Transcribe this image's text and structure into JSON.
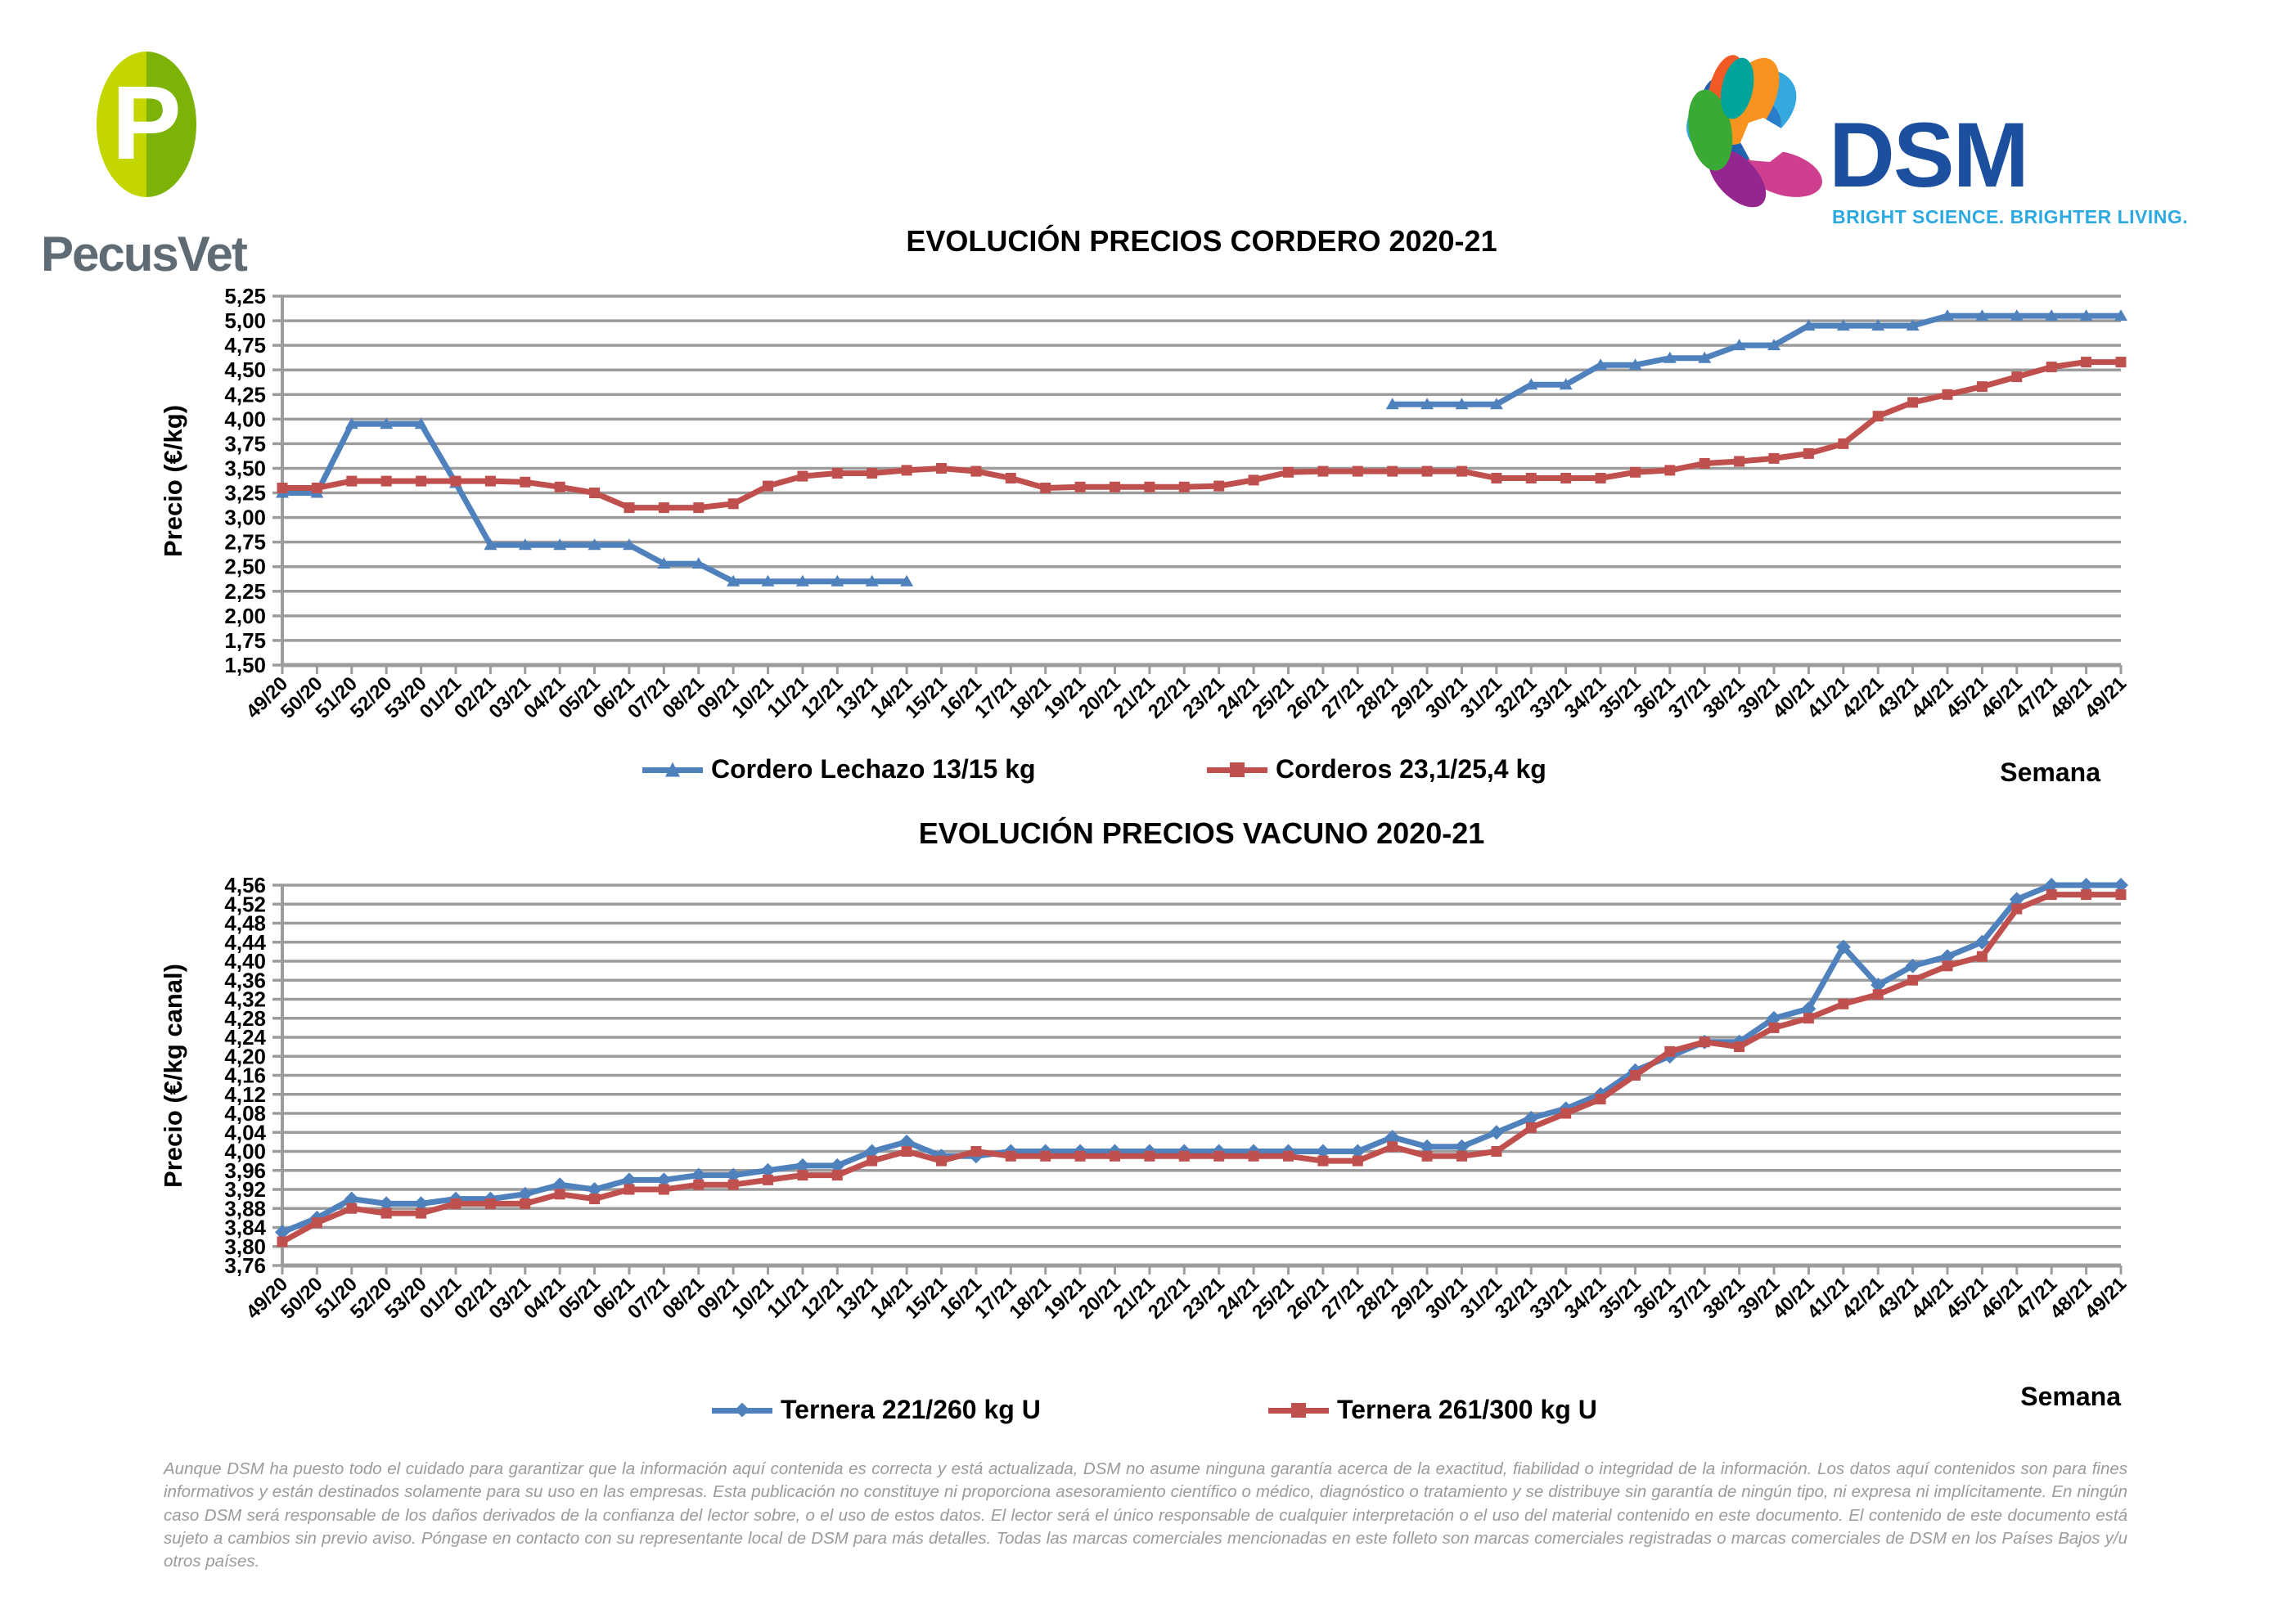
{
  "header": {
    "pecusvet_logo": {
      "monogram": "P",
      "wordmark": "PecusVet",
      "oval_left_color": "#c3d600",
      "oval_right_color": "#7db306",
      "wordmark_color": "#5f6b74"
    },
    "dsm_logo": {
      "wordmark": "DSM",
      "tagline": "BRIGHT SCIENCE. BRIGHTER LIVING.",
      "wordmark_color": "#1c4f9e",
      "tagline_color": "#2da9e1"
    }
  },
  "chart_data": [
    {
      "type": "line",
      "title": "EVOLUCIÓN PRECIOS CORDERO 2020-21",
      "ylabel": "Precio (€/kg)",
      "xlabel": "Semana",
      "ylim": [
        1.5,
        5.25
      ],
      "ystep": 0.25,
      "grid": true,
      "legend_position": "bottom",
      "decimal_comma": true,
      "categories": [
        "49/20",
        "50/20",
        "51/20",
        "52/20",
        "53/20",
        "01/21",
        "02/21",
        "03/21",
        "04/21",
        "05/21",
        "06/21",
        "07/21",
        "08/21",
        "09/21",
        "10/21",
        "11/21",
        "12/21",
        "13/21",
        "14/21",
        "15/21",
        "16/21",
        "17/21",
        "18/21",
        "19/21",
        "20/21",
        "21/21",
        "22/21",
        "23/21",
        "24/21",
        "25/21",
        "26/21",
        "27/21",
        "28/21",
        "29/21",
        "30/21",
        "31/21",
        "32/21",
        "33/21",
        "34/21",
        "35/21",
        "36/21",
        "37/21",
        "38/21",
        "39/21",
        "40/21",
        "41/21",
        "42/21",
        "43/21",
        "44/21",
        "45/21",
        "46/21",
        "47/21",
        "48/21",
        "49/21"
      ],
      "series": [
        {
          "name": "Cordero Lechazo 13/15 kg",
          "color": "#4F81BD",
          "marker": "triangle",
          "values": [
            3.25,
            3.25,
            3.95,
            3.95,
            3.95,
            3.35,
            2.72,
            2.72,
            2.72,
            2.72,
            2.72,
            2.53,
            2.53,
            2.35,
            2.35,
            2.35,
            2.35,
            2.35,
            2.35,
            null,
            null,
            null,
            null,
            null,
            null,
            null,
            null,
            null,
            null,
            null,
            null,
            null,
            4.15,
            4.15,
            4.15,
            4.15,
            4.35,
            4.35,
            4.55,
            4.55,
            4.62,
            4.62,
            4.75,
            4.75,
            4.95,
            4.95,
            4.95,
            4.95,
            5.05,
            5.05,
            5.05,
            5.05,
            5.05,
            5.05
          ]
        },
        {
          "name": "Corderos 23,1/25,4 kg",
          "color": "#C0504D",
          "marker": "square",
          "values": [
            3.3,
            3.3,
            3.37,
            3.37,
            3.37,
            3.37,
            3.37,
            3.36,
            3.31,
            3.25,
            3.1,
            3.1,
            3.1,
            3.14,
            3.32,
            3.42,
            3.45,
            3.45,
            3.48,
            3.5,
            3.47,
            3.4,
            3.3,
            3.31,
            3.31,
            3.31,
            3.31,
            3.32,
            3.38,
            3.46,
            3.47,
            3.47,
            3.47,
            3.47,
            3.47,
            3.4,
            3.4,
            3.4,
            3.4,
            3.46,
            3.48,
            3.55,
            3.57,
            3.6,
            3.65,
            3.75,
            4.03,
            4.17,
            4.25,
            4.33,
            4.43,
            4.53,
            4.58,
            4.58
          ]
        }
      ]
    },
    {
      "type": "line",
      "title": "EVOLUCIÓN PRECIOS VACUNO 2020-21",
      "ylabel": "Precio (€/kg canal)",
      "xlabel": "Semana",
      "ylim": [
        3.76,
        4.56
      ],
      "ystep": 0.04,
      "grid": true,
      "legend_position": "bottom",
      "decimal_comma": true,
      "categories": [
        "49/20",
        "50/20",
        "51/20",
        "52/20",
        "53/20",
        "01/21",
        "02/21",
        "03/21",
        "04/21",
        "05/21",
        "06/21",
        "07/21",
        "08/21",
        "09/21",
        "10/21",
        "11/21",
        "12/21",
        "13/21",
        "14/21",
        "15/21",
        "16/21",
        "17/21",
        "18/21",
        "19/21",
        "20/21",
        "21/21",
        "22/21",
        "23/21",
        "24/21",
        "25/21",
        "26/21",
        "27/21",
        "28/21",
        "29/21",
        "30/21",
        "31/21",
        "32/21",
        "33/21",
        "34/21",
        "35/21",
        "36/21",
        "37/21",
        "38/21",
        "39/21",
        "40/21",
        "41/21",
        "42/21",
        "43/21",
        "44/21",
        "45/21",
        "46/21",
        "47/21",
        "48/21",
        "49/21"
      ],
      "series": [
        {
          "name": "Ternera 221/260 kg U",
          "color": "#4F81BD",
          "marker": "diamond",
          "values": [
            3.83,
            3.86,
            3.9,
            3.89,
            3.89,
            3.9,
            3.9,
            3.91,
            3.93,
            3.92,
            3.94,
            3.94,
            3.95,
            3.95,
            3.96,
            3.97,
            3.97,
            4.0,
            4.02,
            3.99,
            3.99,
            4.0,
            4.0,
            4.0,
            4.0,
            4.0,
            4.0,
            4.0,
            4.0,
            4.0,
            4.0,
            4.0,
            4.03,
            4.01,
            4.01,
            4.04,
            4.07,
            4.09,
            4.12,
            4.17,
            4.2,
            4.23,
            4.23,
            4.28,
            4.3,
            4.43,
            4.35,
            4.39,
            4.41,
            4.44,
            4.53,
            4.56,
            4.56,
            4.56
          ]
        },
        {
          "name": "Ternera 261/300 kg U",
          "color": "#C0504D",
          "marker": "square",
          "values": [
            3.81,
            3.85,
            3.88,
            3.87,
            3.87,
            3.89,
            3.89,
            3.89,
            3.91,
            3.9,
            3.92,
            3.92,
            3.93,
            3.93,
            3.94,
            3.95,
            3.95,
            3.98,
            4.0,
            3.98,
            4.0,
            3.99,
            3.99,
            3.99,
            3.99,
            3.99,
            3.99,
            3.99,
            3.99,
            3.99,
            3.98,
            3.98,
            4.01,
            3.99,
            3.99,
            4.0,
            4.05,
            4.08,
            4.11,
            4.16,
            4.21,
            4.23,
            4.22,
            4.26,
            4.28,
            4.31,
            4.33,
            4.36,
            4.39,
            4.41,
            4.51,
            4.54,
            4.54,
            4.54
          ]
        }
      ]
    }
  ],
  "footer": {
    "disclaimer": "Aunque DSM ha puesto todo el cuidado para garantizar que la información aquí contenida es correcta y está actualizada, DSM no asume ninguna garantía acerca de la exactitud, fiabilidad o integridad de la información. Los datos aquí contenidos son para fines informativos y están destinados solamente para su uso en las empresas. Esta publicación no constituye ni proporciona asesoramiento científico o médico, diagnóstico o tratamiento y se distribuye sin garantía de ningún tipo, ni expresa ni implícitamente. En ningún caso DSM será responsable de los daños derivados de la confianza del lector sobre, o el uso de estos datos. El lector será el único responsable de cualquier interpretación o el uso del material contenido en este documento. El contenido de este documento está sujeto a cambios sin previo aviso. Póngase en contacto con su representante local de DSM para más detalles. Todas las marcas comerciales mencionadas en este folleto son marcas comerciales registradas o marcas comerciales de DSM en los Países Bajos y/u otros países."
  }
}
